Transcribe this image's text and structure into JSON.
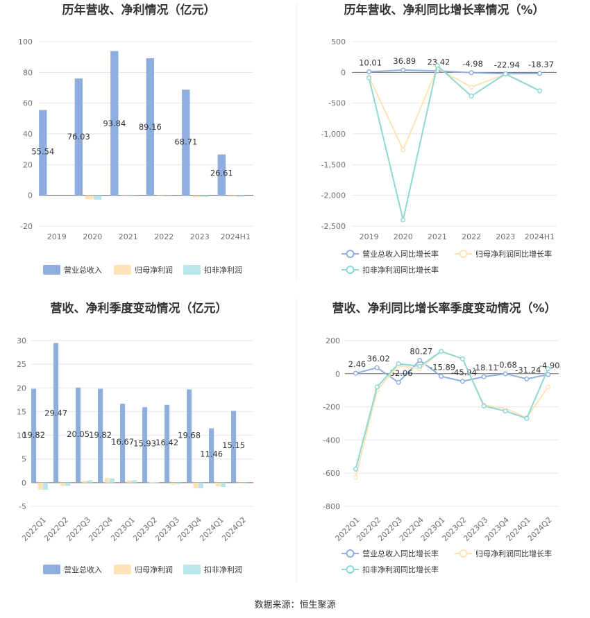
{
  "source_label": "数据来源：恒生聚源",
  "colors": {
    "revenue": "#8eaedf",
    "parent": "#fde3b5",
    "deduct": "#b8e6ea",
    "revLine": "#8eaedf",
    "parLine": "#fde3b5",
    "dedLine": "#8dd7d5"
  },
  "chart_data": [
    {
      "type": "bar",
      "title": "历年营收、净利情况（亿元）",
      "categories": [
        "2019",
        "2020",
        "2021",
        "2022",
        "2023",
        "2024H1"
      ],
      "ylim": [
        -20,
        100
      ],
      "yticks": [
        "100",
        "80",
        "60",
        "40",
        "20",
        "0",
        "-20"
      ],
      "legend": [
        "营业总收入",
        "归母净利润",
        "扣非净利润"
      ],
      "series": [
        {
          "name": "营业总收入",
          "values": [
            55.54,
            76.03,
            93.84,
            89.16,
            68.71,
            26.61
          ],
          "labels": [
            "55.54",
            "76.03",
            "93.84",
            "89.16",
            "68.71",
            "26.61"
          ]
        },
        {
          "name": "归母净利润",
          "values": [
            0,
            -2.5,
            -0.5,
            -0.4,
            -1.2,
            -0.8
          ]
        },
        {
          "name": "扣非净利润",
          "values": [
            0,
            -2.8,
            -0.6,
            -0.6,
            -1.0,
            -0.9
          ]
        }
      ]
    },
    {
      "type": "line",
      "title": "历年营收、净利同比增长率情况（%）",
      "categories": [
        "2019",
        "2020",
        "2021",
        "2022",
        "2023",
        "2024H1"
      ],
      "ylim": [
        -2500,
        500
      ],
      "yticks": [
        "500",
        "0",
        "-500",
        "-1,000",
        "-1,500",
        "-2,000",
        "-2,500"
      ],
      "legend": [
        "营业总收入同比增长率",
        "归母净利润同比增长率",
        "扣非净利润同比增长率"
      ],
      "series": [
        {
          "name": "营业总收入同比增长率",
          "values": [
            10.01,
            36.89,
            23.42,
            -4.98,
            -22.94,
            -18.37
          ],
          "labels": [
            "10.01",
            "36.89",
            "23.42",
            "-4.98",
            "-22.94",
            "-18.37"
          ]
        },
        {
          "name": "归母净利润同比增长率",
          "values": [
            -70,
            -1260,
            70,
            -240,
            -30,
            -295
          ]
        },
        {
          "name": "扣非净利润同比增长率",
          "values": [
            -90,
            -2400,
            110,
            -385,
            -25,
            -300
          ]
        }
      ]
    },
    {
      "type": "bar",
      "title": "营收、净利季度变动情况（亿元）",
      "categories": [
        "2022Q1",
        "2022Q2",
        "2022Q3",
        "2022Q4",
        "2023Q1",
        "2023Q2",
        "2023Q3",
        "2023Q4",
        "2024Q1",
        "2024Q2"
      ],
      "ylim": [
        -5,
        30
      ],
      "yticks": [
        "30",
        "25",
        "20",
        "15",
        "10",
        "5",
        "0",
        "-5"
      ],
      "legend": [
        "营业总收入",
        "归母净利润",
        "扣非净利润"
      ],
      "series": [
        {
          "name": "营业总收入",
          "values": [
            19.82,
            29.47,
            20.05,
            19.82,
            16.67,
            15.93,
            16.42,
            19.68,
            11.46,
            15.15
          ],
          "labels": [
            "19.82",
            "29.47",
            "20.05",
            "19.82",
            "16.67",
            "15.93",
            "16.42",
            "19.68",
            "11.46",
            "15.15"
          ]
        },
        {
          "name": "归母净利润",
          "values": [
            -1.5,
            -0.7,
            0.4,
            1.0,
            0.5,
            0.1,
            -0.4,
            -1.2,
            -0.8,
            -0.2
          ]
        },
        {
          "name": "扣非净利润",
          "values": [
            -1.5,
            -0.7,
            0.5,
            0.9,
            0.5,
            0.1,
            -0.3,
            -1.2,
            -0.9,
            -0.2
          ]
        }
      ]
    },
    {
      "type": "line",
      "title": "营收、净利同比增长率季度变动情况（%）",
      "categories": [
        "2022Q1",
        "2022Q2",
        "2022Q3",
        "2022Q4",
        "2023Q1",
        "2023Q2",
        "2023Q3",
        "2023Q4",
        "2024Q1",
        "2024Q2"
      ],
      "ylim": [
        -800,
        200
      ],
      "yticks": [
        "200",
        "0",
        "-200",
        "-400",
        "-600",
        "-800"
      ],
      "legend": [
        "营业总收入同比增长率",
        "归母净利润同比增长率",
        "扣非净利润同比增长率"
      ],
      "series": [
        {
          "name": "营业总收入同比增长率",
          "values": [
            2.46,
            36.02,
            -52.06,
            80.27,
            -15.89,
            -45.94,
            -18.11,
            -0.68,
            -31.24,
            -4.9
          ],
          "labels": [
            "2.46",
            "36.02",
            "-52.06",
            "80.27",
            "-15.89",
            "-45.94",
            "-18.11",
            "-0.68",
            "-31.24",
            "-4.90"
          ]
        },
        {
          "name": "归母净利润同比增长率",
          "values": [
            -625,
            -100,
            50,
            30,
            135,
            90,
            -190,
            -210,
            -265,
            -80
          ]
        },
        {
          "name": "扣非净利润同比增长率",
          "values": [
            -575,
            -80,
            60,
            45,
            135,
            90,
            -195,
            -225,
            -270,
            30
          ]
        }
      ]
    }
  ]
}
